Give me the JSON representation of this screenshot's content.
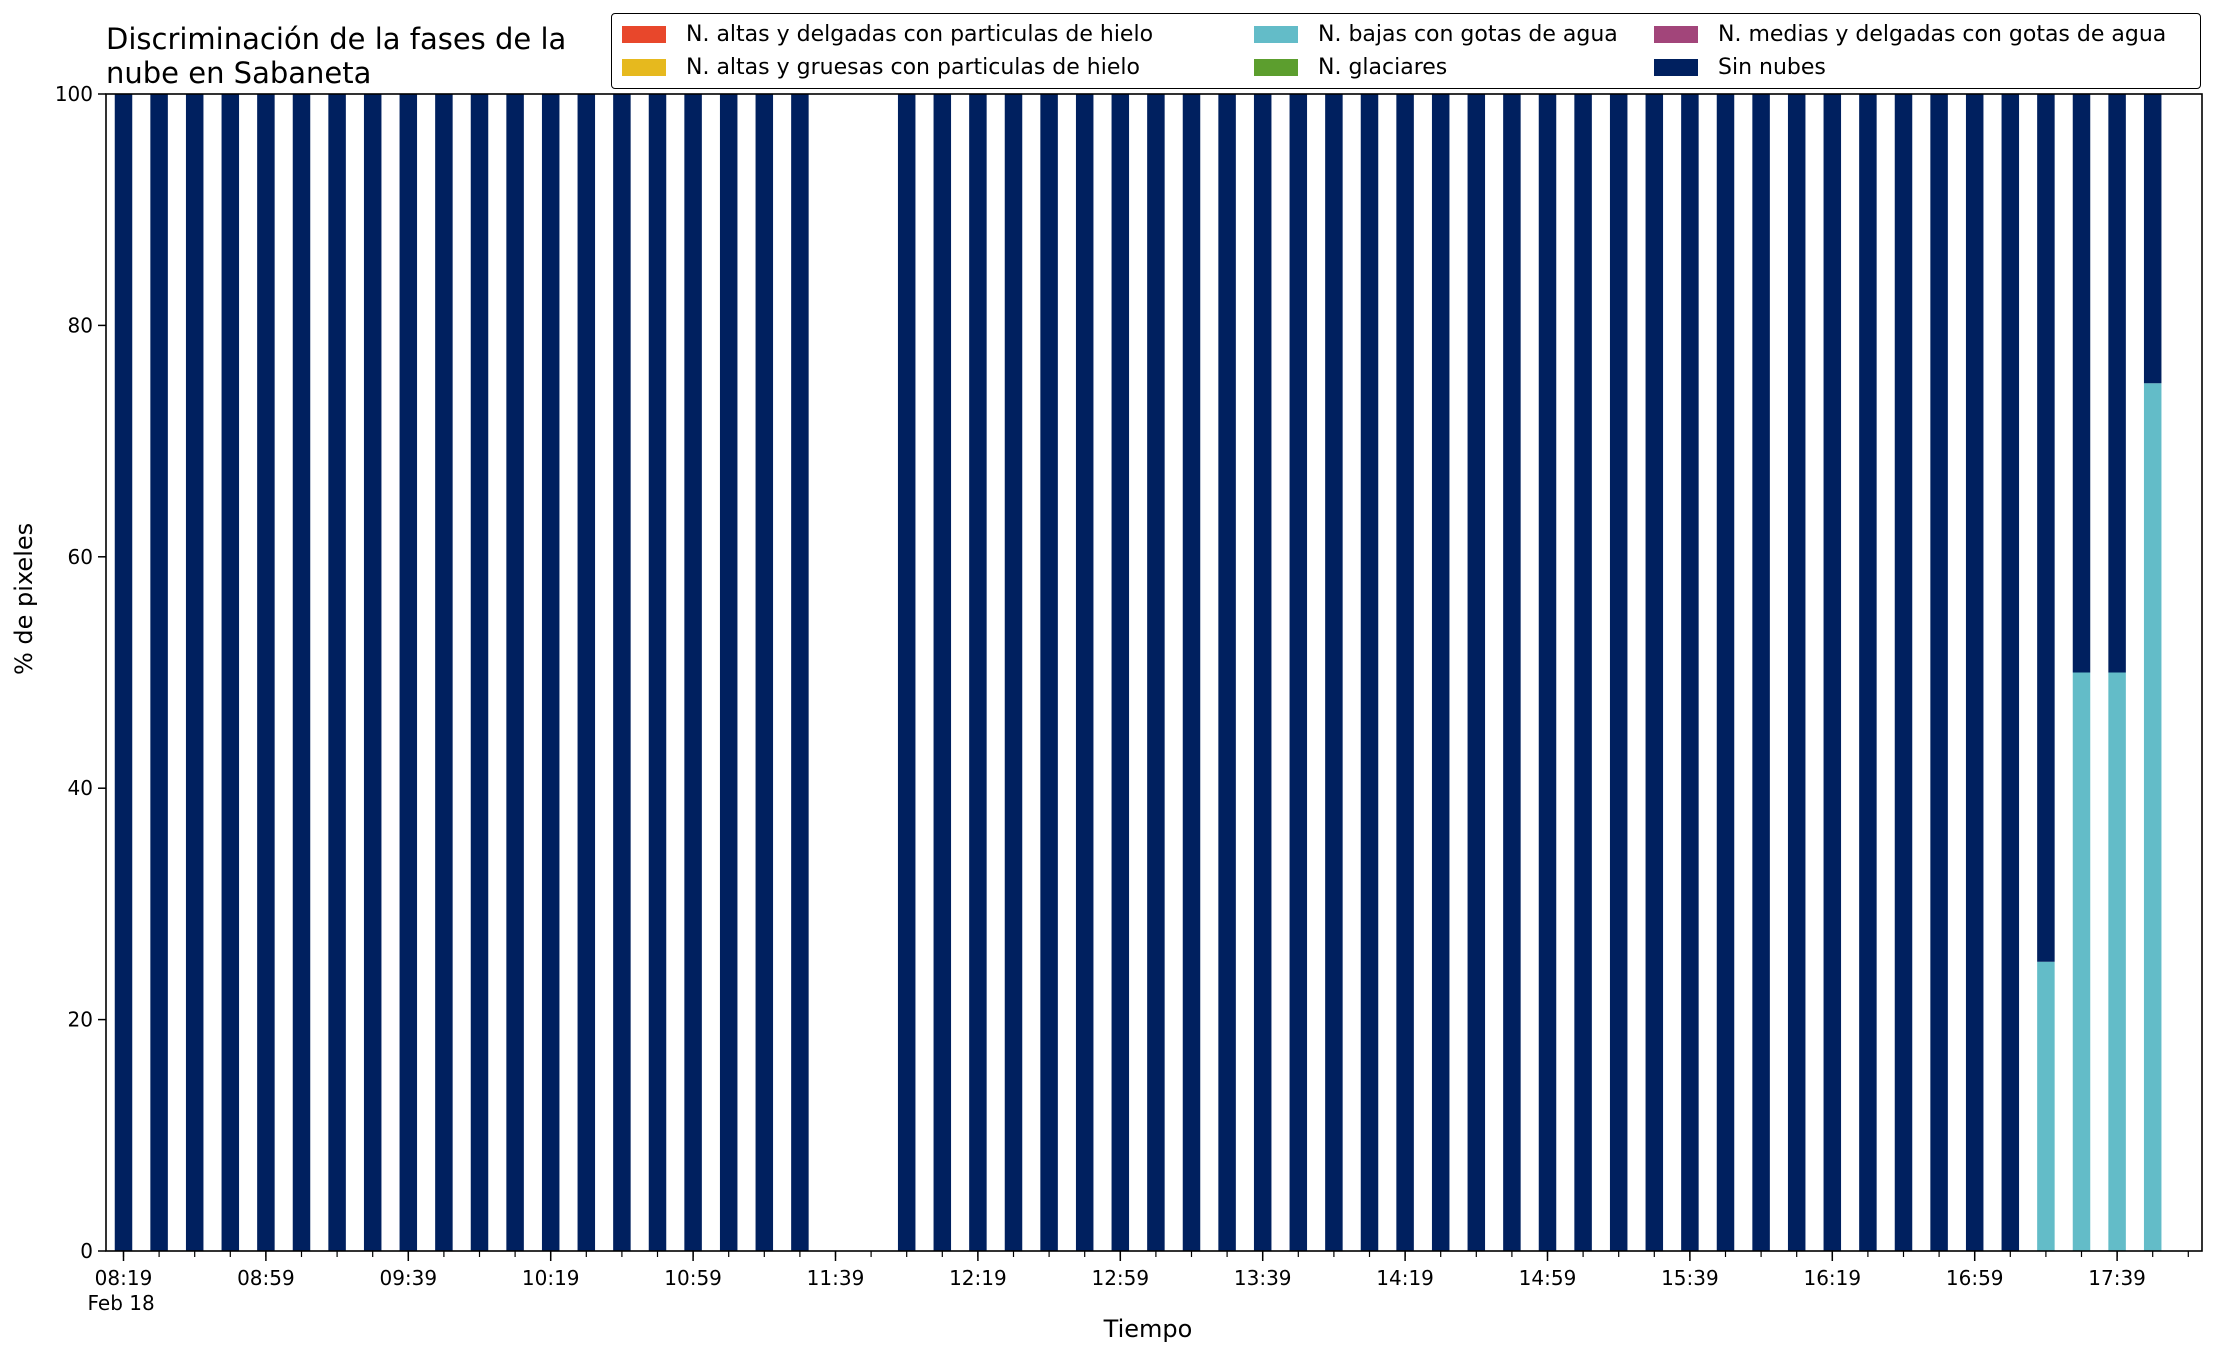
{
  "chart_data": {
    "type": "bar",
    "stacked": true,
    "title": "Discriminación de la fases de la\nnube en Sabaneta",
    "xlabel": "Tiempo",
    "ylabel": "% de pixeles",
    "ylim": [
      0,
      100
    ],
    "yticks": [
      0,
      20,
      40,
      60,
      80,
      100
    ],
    "grid": false,
    "legend_position": "top-right",
    "x_tick_labels": [
      "08:19\nFeb 18",
      "08:59",
      "09:39",
      "10:19",
      "10:59",
      "11:39",
      "12:19",
      "12:59",
      "13:39",
      "14:19",
      "14:59",
      "15:39",
      "16:19",
      "16:59",
      "17:39"
    ],
    "categories": [
      "08:19",
      "08:29",
      "08:39",
      "08:49",
      "08:59",
      "09:09",
      "09:19",
      "09:29",
      "09:39",
      "09:49",
      "09:59",
      "10:09",
      "10:19",
      "10:29",
      "10:39",
      "10:49",
      "10:59",
      "11:09",
      "11:19",
      "11:29",
      "11:39",
      "11:49",
      "11:59",
      "12:09",
      "12:19",
      "12:29",
      "12:39",
      "12:49",
      "12:59",
      "13:09",
      "13:19",
      "13:29",
      "13:39",
      "13:49",
      "13:59",
      "14:09",
      "14:19",
      "14:29",
      "14:39",
      "14:49",
      "14:59",
      "15:09",
      "15:19",
      "15:29",
      "15:39",
      "15:49",
      "15:59",
      "16:09",
      "16:19",
      "16:29",
      "16:39",
      "16:49",
      "16:59",
      "17:09",
      "17:19",
      "17:29",
      "17:39",
      "17:49"
    ],
    "series": [
      {
        "name": "N. altas y delgadas con particulas de hielo",
        "color": "#e8472b",
        "values": [
          0,
          0,
          0,
          0,
          0,
          0,
          0,
          0,
          0,
          0,
          0,
          0,
          0,
          0,
          0,
          0,
          0,
          0,
          0,
          0,
          0,
          0,
          0,
          0,
          0,
          0,
          0,
          0,
          0,
          0,
          0,
          0,
          0,
          0,
          0,
          0,
          0,
          0,
          0,
          0,
          0,
          0,
          0,
          0,
          0,
          0,
          0,
          0,
          0,
          0,
          0,
          0,
          0,
          0,
          0,
          0,
          0,
          0
        ]
      },
      {
        "name": "N. altas y gruesas con particulas de hielo",
        "color": "#e6b91e",
        "values": [
          0,
          0,
          0,
          0,
          0,
          0,
          0,
          0,
          0,
          0,
          0,
          0,
          0,
          0,
          0,
          0,
          0,
          0,
          0,
          0,
          0,
          0,
          0,
          0,
          0,
          0,
          0,
          0,
          0,
          0,
          0,
          0,
          0,
          0,
          0,
          0,
          0,
          0,
          0,
          0,
          0,
          0,
          0,
          0,
          0,
          0,
          0,
          0,
          0,
          0,
          0,
          0,
          0,
          0,
          0,
          0,
          0,
          0
        ]
      },
      {
        "name": "N. bajas con gotas de agua",
        "color": "#63bcc8",
        "values": [
          0,
          0,
          0,
          0,
          0,
          0,
          0,
          0,
          0,
          0,
          0,
          0,
          0,
          0,
          0,
          0,
          0,
          0,
          0,
          0,
          0,
          0,
          0,
          0,
          0,
          0,
          0,
          0,
          0,
          0,
          0,
          0,
          0,
          0,
          0,
          0,
          0,
          0,
          0,
          0,
          0,
          0,
          0,
          0,
          0,
          0,
          0,
          0,
          0,
          0,
          0,
          0,
          0,
          0,
          25,
          50,
          50,
          75
        ]
      },
      {
        "name": "N. glaciares",
        "color": "#5c9e2e",
        "values": [
          0,
          0,
          0,
          0,
          0,
          0,
          0,
          0,
          0,
          0,
          0,
          0,
          0,
          0,
          0,
          0,
          0,
          0,
          0,
          0,
          0,
          0,
          0,
          0,
          0,
          0,
          0,
          0,
          0,
          0,
          0,
          0,
          0,
          0,
          0,
          0,
          0,
          0,
          0,
          0,
          0,
          0,
          0,
          0,
          0,
          0,
          0,
          0,
          0,
          0,
          0,
          0,
          0,
          0,
          0,
          0,
          0,
          0
        ]
      },
      {
        "name": "N. medias y delgadas con gotas de agua",
        "color": "#a2457a",
        "values": [
          0,
          0,
          0,
          0,
          0,
          0,
          0,
          0,
          0,
          0,
          0,
          0,
          0,
          0,
          0,
          0,
          0,
          0,
          0,
          0,
          0,
          0,
          0,
          0,
          0,
          0,
          0,
          0,
          0,
          0,
          0,
          0,
          0,
          0,
          0,
          0,
          0,
          0,
          0,
          0,
          0,
          0,
          0,
          0,
          0,
          0,
          0,
          0,
          0,
          0,
          0,
          0,
          0,
          0,
          0,
          0,
          0,
          0
        ]
      },
      {
        "name": "Sin nubes",
        "color": "#00205f",
        "values": [
          100,
          100,
          100,
          100,
          100,
          100,
          100,
          100,
          100,
          100,
          100,
          100,
          100,
          100,
          100,
          100,
          100,
          100,
          100,
          100,
          0,
          0,
          100,
          100,
          100,
          100,
          100,
          100,
          100,
          100,
          100,
          100,
          100,
          100,
          100,
          100,
          100,
          100,
          100,
          100,
          100,
          100,
          100,
          100,
          100,
          100,
          100,
          100,
          100,
          100,
          100,
          100,
          100,
          100,
          75,
          50,
          50,
          25
        ]
      }
    ]
  }
}
